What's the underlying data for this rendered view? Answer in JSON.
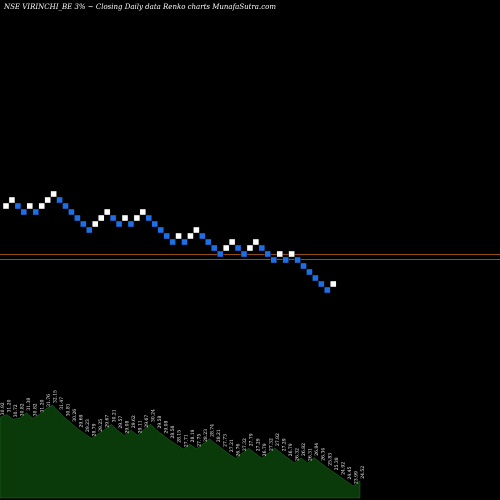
{
  "header": {
    "title": "NSE VIRINCHI_BE 3% ~   Closing Daily data  Renko  charts MunafaSutra.com"
  },
  "colors": {
    "background": "#000000",
    "up_brick": "#ffffff",
    "down_brick": "#1e6fe6",
    "reference_line": "#c8641e",
    "volume_area": "#0a3a0a"
  },
  "chart_data": {
    "type": "renko",
    "brick_size_percent": 3,
    "bricks": [
      {
        "dir": "up",
        "level": 0
      },
      {
        "dir": "up",
        "level": 1
      },
      {
        "dir": "down",
        "level": 0
      },
      {
        "dir": "down",
        "level": -1
      },
      {
        "dir": "up",
        "level": 0
      },
      {
        "dir": "down",
        "level": -1
      },
      {
        "dir": "up",
        "level": 0
      },
      {
        "dir": "up",
        "level": 1
      },
      {
        "dir": "up",
        "level": 2
      },
      {
        "dir": "down",
        "level": 1
      },
      {
        "dir": "down",
        "level": 0
      },
      {
        "dir": "down",
        "level": -1
      },
      {
        "dir": "down",
        "level": -2
      },
      {
        "dir": "down",
        "level": -3
      },
      {
        "dir": "down",
        "level": -4
      },
      {
        "dir": "up",
        "level": -3
      },
      {
        "dir": "up",
        "level": -2
      },
      {
        "dir": "up",
        "level": -1
      },
      {
        "dir": "down",
        "level": -2
      },
      {
        "dir": "down",
        "level": -3
      },
      {
        "dir": "up",
        "level": -2
      },
      {
        "dir": "down",
        "level": -3
      },
      {
        "dir": "up",
        "level": -2
      },
      {
        "dir": "up",
        "level": -1
      },
      {
        "dir": "down",
        "level": -2
      },
      {
        "dir": "down",
        "level": -3
      },
      {
        "dir": "down",
        "level": -4
      },
      {
        "dir": "down",
        "level": -5
      },
      {
        "dir": "down",
        "level": -6
      },
      {
        "dir": "up",
        "level": -5
      },
      {
        "dir": "down",
        "level": -6
      },
      {
        "dir": "up",
        "level": -5
      },
      {
        "dir": "up",
        "level": -4
      },
      {
        "dir": "down",
        "level": -5
      },
      {
        "dir": "down",
        "level": -6
      },
      {
        "dir": "down",
        "level": -7
      },
      {
        "dir": "down",
        "level": -8
      },
      {
        "dir": "up",
        "level": -7
      },
      {
        "dir": "up",
        "level": -6
      },
      {
        "dir": "down",
        "level": -7
      },
      {
        "dir": "down",
        "level": -8
      },
      {
        "dir": "up",
        "level": -7
      },
      {
        "dir": "up",
        "level": -6
      },
      {
        "dir": "down",
        "level": -7
      },
      {
        "dir": "down",
        "level": -8
      },
      {
        "dir": "down",
        "level": -9
      },
      {
        "dir": "up",
        "level": -8
      },
      {
        "dir": "down",
        "level": -9
      },
      {
        "dir": "up",
        "level": -8
      },
      {
        "dir": "down",
        "level": -9
      },
      {
        "dir": "down",
        "level": -10
      },
      {
        "dir": "down",
        "level": -11
      },
      {
        "dir": "down",
        "level": -12
      },
      {
        "dir": "down",
        "level": -13
      },
      {
        "dir": "down",
        "level": -14
      },
      {
        "dir": "up",
        "level": -13
      }
    ],
    "reference_lines": [
      {
        "level": -8.1
      },
      {
        "level": -8.9
      }
    ],
    "volume_labels": [
      "30.92",
      "31.20",
      "30.72",
      "30.82",
      "31.38",
      "30.82",
      "31.20",
      "31.76",
      "32.15",
      "31.47",
      "30.81",
      "30.26",
      "29.69",
      "29.23",
      "28.79",
      "29.25",
      "29.67",
      "30.21",
      "29.57",
      "29.08",
      "29.62",
      "29.11",
      "29.67",
      "30.24",
      "29.58",
      "29.08",
      "28.58",
      "28.15",
      "27.71",
      "28.19",
      "27.75",
      "28.23",
      "28.74",
      "28.21",
      "27.73",
      "27.21",
      "26.76",
      "27.32",
      "27.79",
      "27.29",
      "26.79",
      "27.32",
      "27.82",
      "27.29",
      "26.79",
      "26.32",
      "26.82",
      "26.31",
      "26.84",
      "26.34",
      "25.83",
      "25.38",
      "24.92",
      "24.45",
      "23.99",
      "24.52"
    ]
  }
}
